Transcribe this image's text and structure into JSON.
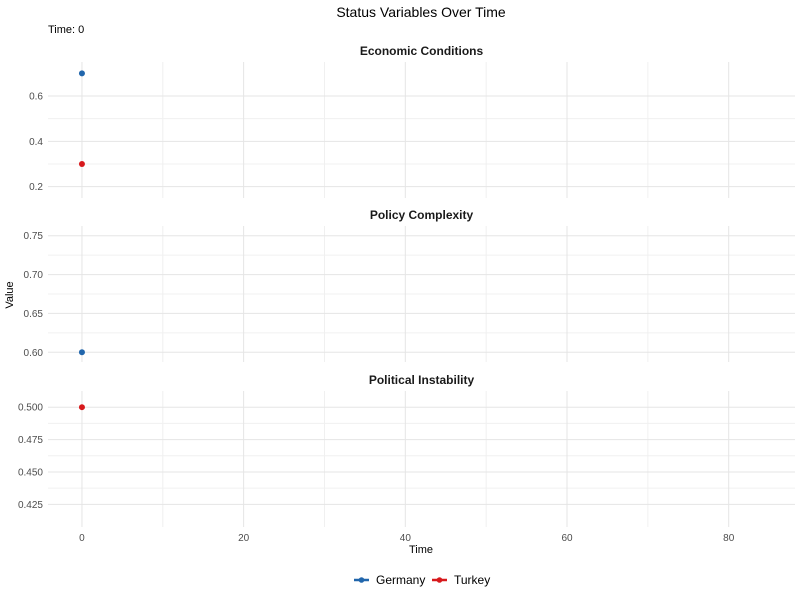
{
  "chart_data": {
    "type": "scatter",
    "title": "Status Variables Over Time",
    "subtitle": "Time: 0",
    "xlabel": "Time",
    "ylabel": "Value",
    "xlim": [
      -4.2,
      88.2
    ],
    "x_ticks": [
      0,
      20,
      40,
      60,
      80
    ],
    "legend": "bottom",
    "grid": true,
    "series": [
      {
        "name": "Germany",
        "color": "#2166ac"
      },
      {
        "name": "Turkey",
        "color": "#d7191c"
      }
    ],
    "panels": [
      {
        "title": "Economic Conditions",
        "ylim": [
          0.15,
          0.75
        ],
        "y_ticks": [
          0.2,
          0.4,
          0.6
        ],
        "y_tick_labels": [
          "0.2",
          "0.4",
          "0.6"
        ],
        "points": [
          {
            "series": "Germany",
            "x": 0,
            "y": 0.7
          },
          {
            "series": "Turkey",
            "x": 0,
            "y": 0.3
          }
        ]
      },
      {
        "title": "Policy Complexity",
        "ylim": [
          0.5875,
          0.7625
        ],
        "y_ticks": [
          0.6,
          0.65,
          0.7,
          0.75
        ],
        "y_tick_labels": [
          "0.60",
          "0.65",
          "0.70",
          "0.75"
        ],
        "points": [
          {
            "series": "Germany",
            "x": 0,
            "y": 0.6
          }
        ]
      },
      {
        "title": "Political Instability",
        "ylim": [
          0.4075,
          0.5125
        ],
        "y_ticks": [
          0.425,
          0.45,
          0.475,
          0.5
        ],
        "y_tick_labels": [
          "0.425",
          "0.450",
          "0.475",
          "0.500"
        ],
        "points": [
          {
            "series": "Turkey",
            "x": 0,
            "y": 0.5
          }
        ]
      }
    ]
  }
}
